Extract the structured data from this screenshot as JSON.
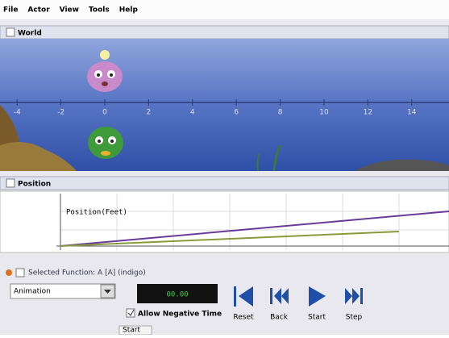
{
  "menu": [
    "File",
    "Actor",
    "View",
    "Tools",
    "Help"
  ],
  "world": {
    "title": "World",
    "ruler_ticks": [
      -4,
      -2,
      0,
      2,
      4,
      6,
      8,
      10,
      12,
      14
    ]
  },
  "position": {
    "title": "Position",
    "graph_label": "Position(Feet)"
  },
  "controls": {
    "selected_function": "Selected Function: A [A] (indigo)",
    "mode": "Animation",
    "timer": "00.00",
    "allow_negative_time": "Allow Negative Time",
    "buttons": [
      "Reset",
      "Back",
      "Start",
      "Step"
    ],
    "bottom_label": "Start"
  }
}
